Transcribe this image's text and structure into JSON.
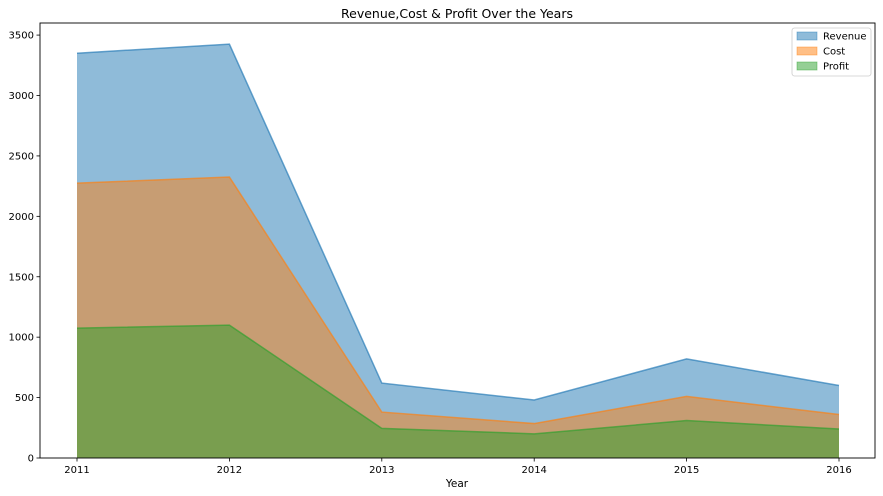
{
  "chart_data": {
    "type": "area",
    "title": "Revenue,Cost & Profit Over the Years",
    "xlabel": "Year",
    "ylabel": "",
    "x": [
      "2011",
      "2012",
      "2013",
      "2014",
      "2015",
      "2016"
    ],
    "ylim": [
      0,
      3600
    ],
    "yticks": [
      0,
      500,
      1000,
      1500,
      2000,
      2500,
      3000,
      3500
    ],
    "grid": false,
    "stacked": false,
    "legend_position": "top-right",
    "series": [
      {
        "name": "Revenue",
        "color": "#1f77b4",
        "values": [
          3350,
          3425,
          620,
          480,
          820,
          600
        ]
      },
      {
        "name": "Cost",
        "color": "#ff7f0e",
        "values": [
          2275,
          2325,
          380,
          285,
          510,
          360
        ]
      },
      {
        "name": "Profit",
        "color": "#2ca02c",
        "values": [
          1075,
          1100,
          245,
          200,
          310,
          240
        ]
      }
    ]
  }
}
